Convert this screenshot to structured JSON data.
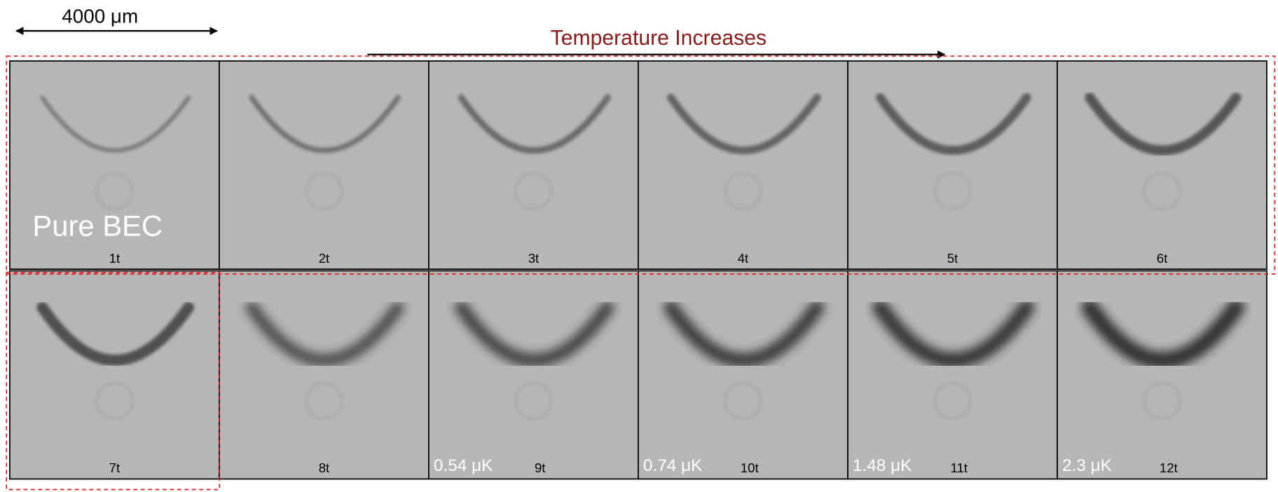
{
  "scale_bar": {
    "label": "4000 μm"
  },
  "header": {
    "title": "Temperature Increases"
  },
  "panels": [
    {
      "label": "1t",
      "note": "Pure BEC"
    },
    {
      "label": "2t"
    },
    {
      "label": "3t"
    },
    {
      "label": "4t"
    },
    {
      "label": "5t"
    },
    {
      "label": "6t"
    },
    {
      "label": "7t"
    },
    {
      "label": "8t"
    },
    {
      "label": "9t",
      "note": "0.54 μK"
    },
    {
      "label": "10t",
      "note": "0.74 μK"
    },
    {
      "label": "11t",
      "note": "1.48 μK"
    },
    {
      "label": "12t",
      "note": "2.3 μK"
    }
  ]
}
